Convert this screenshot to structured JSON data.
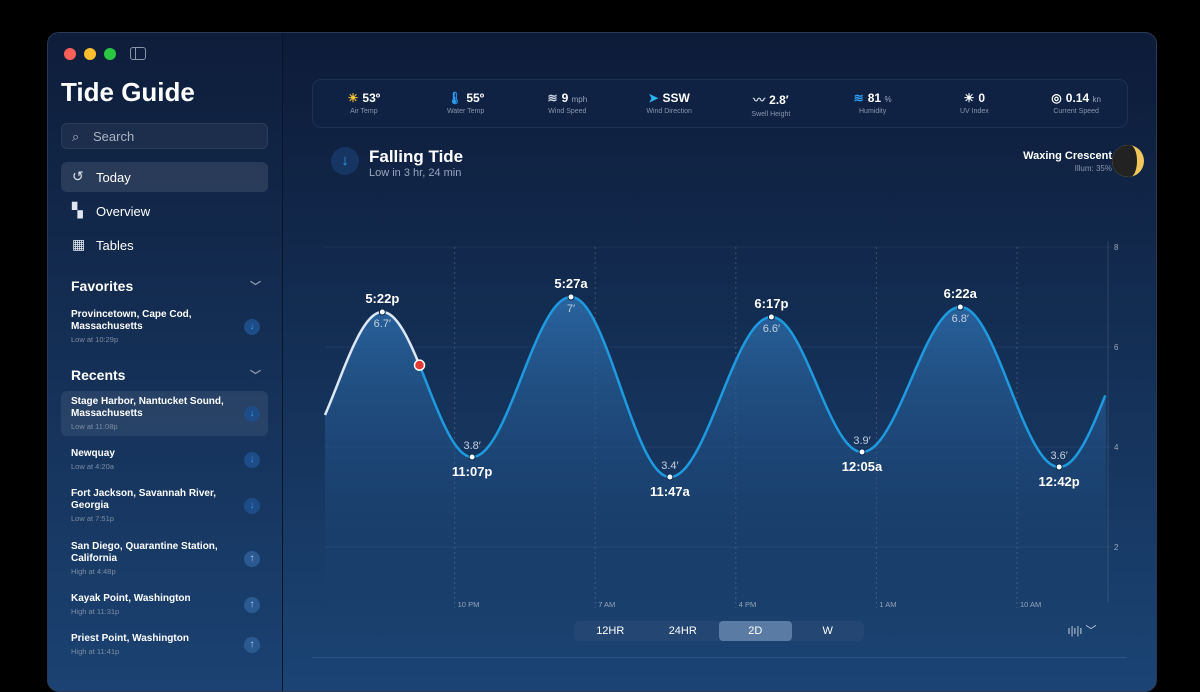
{
  "app": {
    "title": "Tide Guide"
  },
  "sidebar": {
    "search_placeholder": "Search",
    "nav": [
      {
        "label": "Today",
        "icon": "clock-arrow-icon"
      },
      {
        "label": "Overview",
        "icon": "grid-icon"
      },
      {
        "label": "Tables",
        "icon": "table-icon"
      }
    ],
    "favorites_label": "Favorites",
    "favorites": [
      {
        "name": "Provincetown, Cape Cod, Massachusetts",
        "sub": "Low at 10:29p",
        "dir": "down"
      }
    ],
    "recents_label": "Recents",
    "recents": [
      {
        "name": "Stage Harbor, Nantucket Sound, Massachusetts",
        "sub": "Low at 11:08p",
        "dir": "down"
      },
      {
        "name": "Newquay",
        "sub": "Low at 4:20a",
        "dir": "down"
      },
      {
        "name": "Fort Jackson, Savannah River, Georgia",
        "sub": "Low at 7:51p",
        "dir": "down"
      },
      {
        "name": "San Diego, Quarantine Station, California",
        "sub": "High at 4:48p",
        "dir": "up"
      },
      {
        "name": "Kayak Point, Washington",
        "sub": "High at 11:31p",
        "dir": "up"
      },
      {
        "name": "Priest Point, Washington",
        "sub": "High at 11:41p",
        "dir": "up"
      }
    ]
  },
  "stats": [
    {
      "icon": "sun-icon",
      "value": "53º",
      "unit": "",
      "label": "Air Temp"
    },
    {
      "icon": "thermometer-water-icon",
      "value": "55º",
      "unit": "",
      "label": "Water Temp"
    },
    {
      "icon": "wind-icon",
      "value": "9",
      "unit": "mph",
      "label": "Wind Speed"
    },
    {
      "icon": "wind-direction-icon",
      "value": "SSW",
      "unit": "",
      "label": "Wind Direction"
    },
    {
      "icon": "wave-icon",
      "value": "2.8′",
      "unit": "",
      "label": "Swell Height"
    },
    {
      "icon": "humidity-icon",
      "value": "81",
      "unit": "%",
      "label": "Humidity"
    },
    {
      "icon": "uv-sun-icon",
      "value": "0",
      "unit": "",
      "label": "UV Index"
    },
    {
      "icon": "gauge-icon",
      "value": "0.14",
      "unit": "kn",
      "label": "Current Speed"
    }
  ],
  "tide": {
    "title": "Falling Tide",
    "subtitle": "Low in 3 hr, 24 min",
    "icon": "arrow-down-icon"
  },
  "moon": {
    "phase": "Waxing Crescent",
    "illum": "Illum: 35%",
    "illum_fraction": 0.35
  },
  "chart_data": {
    "type": "area",
    "y_ticks": [
      2,
      4,
      6,
      8
    ],
    "ylim": [
      1.2,
      8
    ],
    "x_ticks": [
      "10 PM",
      "7 AM",
      "4 PM",
      "1 AM",
      "10 AM"
    ],
    "x_tick_hours": [
      22,
      31,
      40,
      49,
      58
    ],
    "xlim_hours": [
      13.7,
      63.7
    ],
    "extremes": [
      {
        "time": "5:22p",
        "hour": 17.37,
        "height": 6.7,
        "height_label": "6.7′",
        "type": "high"
      },
      {
        "time": "11:07p",
        "hour": 23.12,
        "height": 3.8,
        "height_label": "3.8′",
        "type": "low"
      },
      {
        "time": "5:27a",
        "hour": 29.45,
        "height": 7.0,
        "height_label": "7′",
        "type": "high"
      },
      {
        "time": "11:47a",
        "hour": 35.78,
        "height": 3.4,
        "height_label": "3.4′",
        "type": "low"
      },
      {
        "time": "6:17p",
        "hour": 42.28,
        "height": 6.6,
        "height_label": "6.6′",
        "type": "high"
      },
      {
        "time": "12:05a",
        "hour": 48.08,
        "height": 3.9,
        "height_label": "3.9′",
        "type": "low"
      },
      {
        "time": "6:22a",
        "hour": 54.37,
        "height": 6.8,
        "height_label": "6.8′",
        "type": "high"
      },
      {
        "time": "12:42p",
        "hour": 60.7,
        "height": 3.6,
        "height_label": "3.6′",
        "type": "low"
      }
    ],
    "now": {
      "hour": 19.75,
      "height": 5.6
    },
    "colors": {
      "future": "#1e9be0",
      "past": "#dde8f5",
      "now": "#e53935"
    }
  },
  "controls": {
    "ranges": [
      "12HR",
      "24HR",
      "2D",
      "W"
    ],
    "selected": "2D",
    "wave_icon": "waveform-icon"
  }
}
